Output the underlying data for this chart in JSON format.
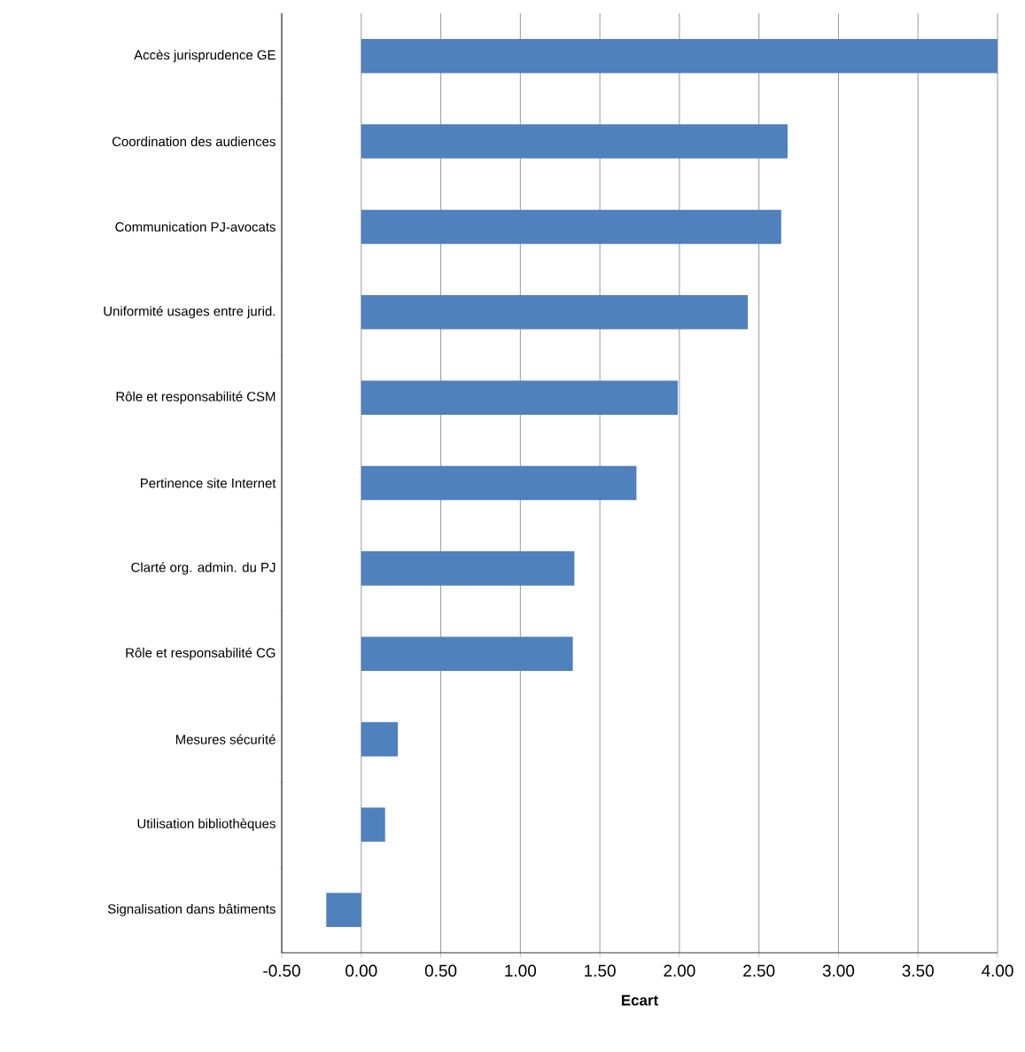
{
  "chart_data": {
    "type": "bar",
    "orientation": "horizontal",
    "xlabel": "Ecart",
    "categories": [
      "Accès jurisprudence GE",
      "Coordination des audiences",
      "Communication PJ-avocats",
      "Uniformité usages entre jurid.",
      "Rôle et responsabilité CSM",
      "Pertinence site Internet",
      "Clarté org. admin. du PJ",
      "Rôle et responsabilité CG",
      "Mesures sécurité",
      "Utilisation bibliothèques",
      "Signalisation dans bâtiments"
    ],
    "values": [
      4.0,
      2.68,
      2.64,
      2.43,
      1.99,
      1.73,
      1.34,
      1.33,
      0.23,
      0.15,
      -0.22
    ],
    "color": "#4f81bd",
    "xlim": [
      -0.5,
      4.0
    ],
    "xticks": [
      {
        "value": -0.5,
        "label": "-0.50"
      },
      {
        "value": 0,
        "label": "0.00"
      },
      {
        "value": 0.5,
        "label": "0.50"
      },
      {
        "value": 1,
        "label": "1.00"
      },
      {
        "value": 1.5,
        "label": "1.50"
      },
      {
        "value": 2,
        "label": "2.00"
      },
      {
        "value": 2.5,
        "label": "2.50"
      },
      {
        "value": 3,
        "label": "3.00"
      },
      {
        "value": 3.5,
        "label": "3.50"
      },
      {
        "value": 4,
        "label": "4.00"
      }
    ],
    "grid": "x"
  }
}
